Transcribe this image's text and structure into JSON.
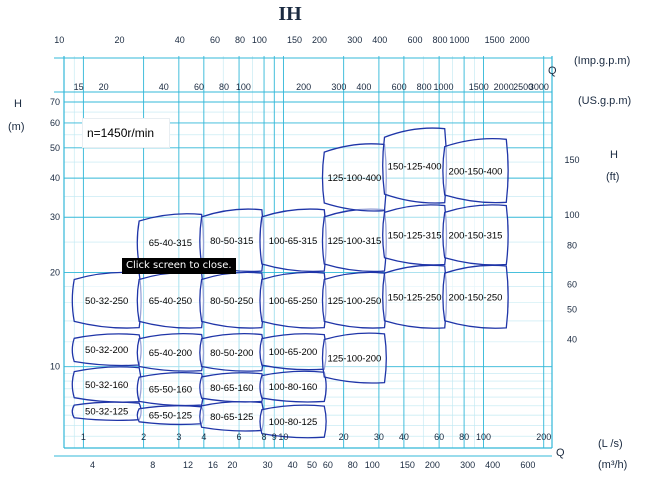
{
  "page": {
    "title": "IH",
    "speed_note": "n=1450r/min",
    "tooltip": "Click screen to close."
  },
  "colors": {
    "grid_major": "#33b8d8",
    "grid_minor": "#bfe8f2",
    "outline": "#1f35a8",
    "text": "#1a2a40"
  },
  "chart_data": {
    "type": "area",
    "title": "IH",
    "x_scale": "log",
    "y_scale": "log",
    "xlim": [
      0.8,
      220
    ],
    "ylim": [
      5.5,
      70
    ],
    "grid": true,
    "axes": {
      "y_left": {
        "label": "H",
        "unit": "(m)",
        "ticks": [
          10,
          20,
          30,
          40,
          50,
          60,
          70
        ]
      },
      "y_right": {
        "label": "H",
        "unit": "(ft)",
        "ticks": [
          40,
          50,
          60,
          80,
          100,
          150
        ]
      },
      "x_bottom_ls": {
        "label": "Q",
        "unit": "(L /s)",
        "ticks": [
          1,
          2,
          3,
          4,
          6,
          8,
          9,
          10,
          20,
          30,
          40,
          60,
          80,
          100,
          200
        ]
      },
      "x_bottom_m3h": {
        "unit": "(m³/h)",
        "ticks": [
          4,
          8,
          12,
          16,
          20,
          30,
          40,
          50,
          60,
          80,
          100,
          150,
          200,
          300,
          400,
          600
        ]
      },
      "x_top_imp": {
        "label": "Q",
        "unit": "(Imp.g.p.m)",
        "ticks": [
          10,
          20,
          40,
          60,
          80,
          100,
          150,
          200,
          300,
          400,
          600,
          800,
          1000,
          1500,
          2000
        ]
      },
      "x_top_us": {
        "unit": "(US.g.p.m)",
        "ticks": [
          15,
          20,
          40,
          60,
          80,
          100,
          200,
          300,
          400,
          600,
          800,
          1000,
          1500,
          2000,
          2500,
          3000
        ]
      }
    },
    "regions": [
      {
        "name": "50-32-125",
        "q": [
          0.9,
          1.9
        ],
        "h": [
          6.8,
          7.6
        ]
      },
      {
        "name": "50-32-160",
        "q": [
          0.9,
          1.9
        ],
        "h": [
          7.8,
          9.8
        ]
      },
      {
        "name": "50-32-200",
        "q": [
          0.9,
          1.9
        ],
        "h": [
          10.2,
          12.5
        ]
      },
      {
        "name": "50-32-250",
        "q": [
          0.9,
          1.9
        ],
        "h": [
          13.5,
          19.5
        ]
      },
      {
        "name": "65-50-125",
        "q": [
          1.9,
          3.9
        ],
        "h": [
          6.6,
          7.4
        ]
      },
      {
        "name": "65-50-160",
        "q": [
          1.9,
          3.9
        ],
        "h": [
          7.6,
          9.4
        ]
      },
      {
        "name": "65-40-200",
        "q": [
          1.9,
          3.9
        ],
        "h": [
          9.8,
          12.5
        ]
      },
      {
        "name": "65-40-250",
        "q": [
          1.9,
          3.9
        ],
        "h": [
          13.5,
          19.5
        ]
      },
      {
        "name": "65-40-315",
        "q": [
          1.9,
          3.9
        ],
        "h": [
          20.5,
          30
        ]
      },
      {
        "name": "80-65-125",
        "q": [
          3.9,
          7.8
        ],
        "h": [
          6.3,
          7.6
        ]
      },
      {
        "name": "80-65-160",
        "q": [
          3.9,
          7.8
        ],
        "h": [
          7.8,
          9.4
        ]
      },
      {
        "name": "80-50-200",
        "q": [
          3.9,
          7.8
        ],
        "h": [
          9.8,
          12.5
        ]
      },
      {
        "name": "80-50-250",
        "q": [
          3.9,
          7.8
        ],
        "h": [
          13.5,
          19.5
        ]
      },
      {
        "name": "80-50-315",
        "q": [
          3.9,
          7.8
        ],
        "h": [
          20.5,
          31
        ]
      },
      {
        "name": "100-80-125",
        "q": [
          7.8,
          16
        ],
        "h": [
          6.0,
          7.4
        ]
      },
      {
        "name": "100-80-160",
        "q": [
          7.8,
          16
        ],
        "h": [
          7.8,
          9.5
        ]
      },
      {
        "name": "100-65-200",
        "q": [
          7.8,
          16
        ],
        "h": [
          9.9,
          12.5
        ]
      },
      {
        "name": "100-65-250",
        "q": [
          7.8,
          16
        ],
        "h": [
          13.5,
          19.5
        ]
      },
      {
        "name": "100-65-315",
        "q": [
          7.8,
          16
        ],
        "h": [
          20.5,
          31
        ]
      },
      {
        "name": "125-100-200",
        "q": [
          16,
          32
        ],
        "h": [
          9.0,
          12.5
        ]
      },
      {
        "name": "125-100-250",
        "q": [
          16,
          32
        ],
        "h": [
          13.5,
          19.5
        ]
      },
      {
        "name": "125-100-315",
        "q": [
          16,
          32
        ],
        "h": [
          20.5,
          31
        ]
      },
      {
        "name": "125-100-400",
        "q": [
          16,
          32
        ],
        "h": [
          32,
          50
        ]
      },
      {
        "name": "150-125-250",
        "q": [
          32,
          64
        ],
        "h": [
          13.5,
          20.5
        ]
      },
      {
        "name": "150-125-315",
        "q": [
          32,
          64
        ],
        "h": [
          21.5,
          32
        ]
      },
      {
        "name": "150-125-400",
        "q": [
          32,
          64
        ],
        "h": [
          34,
          56
        ]
      },
      {
        "name": "200-150-250",
        "q": [
          64,
          130
        ],
        "h": [
          13.5,
          20.5
        ]
      },
      {
        "name": "200-150-315",
        "q": [
          64,
          130
        ],
        "h": [
          21.5,
          32
        ]
      },
      {
        "name": "200-150-400",
        "q": [
          64,
          130
        ],
        "h": [
          34,
          52
        ]
      }
    ]
  }
}
